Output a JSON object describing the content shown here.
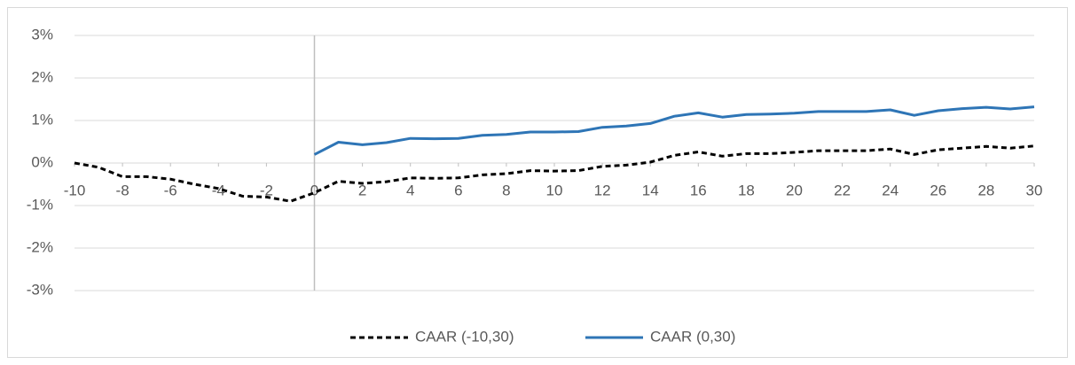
{
  "chart_data": {
    "type": "line",
    "x": [
      -10,
      -9,
      -8,
      -7,
      -6,
      -5,
      -4,
      -3,
      -2,
      -1,
      0,
      1,
      2,
      3,
      4,
      5,
      6,
      7,
      8,
      9,
      10,
      11,
      12,
      13,
      14,
      15,
      16,
      17,
      18,
      19,
      20,
      21,
      22,
      23,
      24,
      25,
      26,
      27,
      28,
      29,
      30
    ],
    "series": [
      {
        "name": "CAAR (-10,30)",
        "color": "#000000",
        "dash": true,
        "values": [
          0.0,
          -0.1,
          -0.32,
          -0.32,
          -0.38,
          -0.5,
          -0.6,
          -0.78,
          -0.8,
          -0.9,
          -0.7,
          -0.43,
          -0.48,
          -0.44,
          -0.35,
          -0.36,
          -0.35,
          -0.28,
          -0.25,
          -0.18,
          -0.19,
          -0.18,
          -0.08,
          -0.05,
          0.02,
          0.18,
          0.26,
          0.16,
          0.22,
          0.22,
          0.25,
          0.29,
          0.29,
          0.29,
          0.33,
          0.2,
          0.31,
          0.35,
          0.39,
          0.35,
          0.4
        ]
      },
      {
        "name": "CAAR (0,30)",
        "color": "#2e75b6",
        "dash": false,
        "values": [
          null,
          null,
          null,
          null,
          null,
          null,
          null,
          null,
          null,
          null,
          0.2,
          0.49,
          0.43,
          0.48,
          0.58,
          0.57,
          0.58,
          0.65,
          0.67,
          0.73,
          0.73,
          0.74,
          0.84,
          0.87,
          0.93,
          1.1,
          1.18,
          1.08,
          1.14,
          1.15,
          1.17,
          1.21,
          1.21,
          1.21,
          1.25,
          1.12,
          1.23,
          1.28,
          1.31,
          1.27,
          1.32
        ]
      }
    ],
    "xlim": [
      -10,
      30
    ],
    "xticks": [
      -10,
      -8,
      -6,
      -4,
      -2,
      0,
      2,
      4,
      6,
      8,
      10,
      12,
      14,
      16,
      18,
      20,
      22,
      24,
      26,
      28,
      30
    ],
    "ylim": [
      -3,
      3
    ],
    "yticks": [
      {
        "value": -3,
        "label": "-3%"
      },
      {
        "value": -2,
        "label": "-2%"
      },
      {
        "value": -1,
        "label": "-1%"
      },
      {
        "value": 0,
        "label": "0%"
      },
      {
        "value": 1,
        "label": "1%"
      },
      {
        "value": 2,
        "label": "2%"
      },
      {
        "value": 3,
        "label": "3%"
      }
    ],
    "grid": true,
    "legend": "bottom"
  }
}
